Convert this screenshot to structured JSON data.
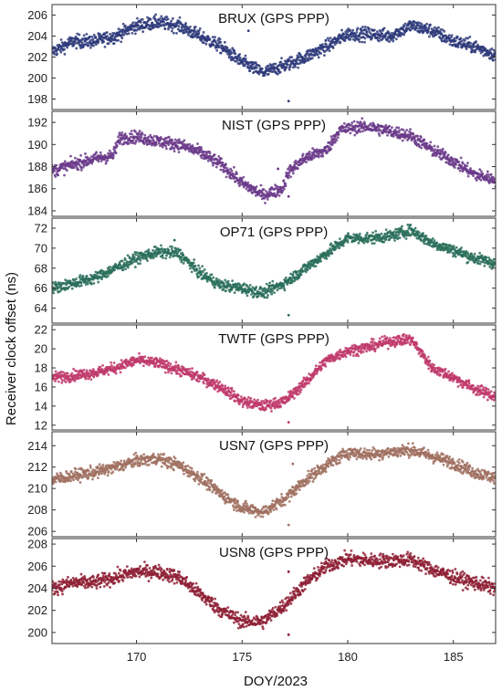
{
  "chart_data": {
    "type": "scatter",
    "xlabel": "DOY/2023",
    "ylabel": "Receiver clock offset (ns)",
    "xlim": [
      166,
      187
    ],
    "xticks": [
      170,
      175,
      180,
      185
    ],
    "legend": "none",
    "grid": false,
    "panels": [
      {
        "title": "BRUX (GPS PPP)",
        "color": "#2e3a7a",
        "ylim": [
          197,
          207
        ],
        "yticks": [
          198,
          200,
          202,
          204,
          206
        ],
        "noise": 0.9,
        "series": {
          "x": [
            166,
            167,
            168,
            169,
            170,
            171,
            172,
            173,
            174,
            175,
            176,
            177,
            178,
            179,
            180,
            181,
            182,
            183,
            184,
            185,
            186,
            187
          ],
          "y": [
            202.5,
            203.5,
            203.5,
            204.0,
            205.0,
            205.3,
            205.0,
            204.0,
            203.0,
            201.5,
            200.5,
            201.2,
            202.0,
            203.0,
            204.2,
            204.2,
            204.0,
            205.0,
            204.5,
            203.5,
            203.0,
            202.2
          ]
        },
        "outliers": [
          [
            177.2,
            197.8
          ],
          [
            175.3,
            204.5
          ]
        ]
      },
      {
        "title": "NIST (GPS PPP)",
        "color": "#6b3a8a",
        "ylim": [
          183.5,
          193
        ],
        "yticks": [
          184,
          186,
          188,
          190,
          192
        ],
        "noise": 0.8,
        "series": {
          "x": [
            166,
            167,
            168,
            168.9,
            169.2,
            170,
            171,
            172,
            173,
            174,
            175,
            176,
            176.9,
            177.2,
            178,
            179,
            179.6,
            180.5,
            181,
            182,
            183,
            184,
            185,
            186,
            187
          ],
          "y": [
            187.6,
            188.2,
            188.7,
            189.0,
            190.6,
            190.7,
            190.3,
            190.0,
            189.3,
            188.2,
            186.5,
            185.4,
            186.0,
            187.5,
            188.8,
            189.5,
            191.3,
            191.6,
            191.6,
            191.2,
            190.8,
            189.5,
            188.5,
            187.3,
            186.8
          ]
        },
        "outliers": [
          [
            177.2,
            185.3
          ],
          [
            176.7,
            187.8
          ]
        ]
      },
      {
        "title": "OP71 (GPS PPP)",
        "color": "#2a6e5a",
        "ylim": [
          62.5,
          73
        ],
        "yticks": [
          64,
          66,
          68,
          70,
          72
        ],
        "noise": 0.8,
        "series": {
          "x": [
            166,
            167,
            168,
            169,
            170,
            171,
            172,
            173,
            174,
            175,
            176,
            177,
            178,
            179,
            180,
            181,
            182,
            183,
            184,
            185,
            186,
            187
          ],
          "y": [
            66.0,
            66.5,
            67.0,
            68.0,
            69.0,
            69.6,
            69.5,
            67.5,
            66.3,
            66.0,
            65.5,
            66.5,
            68.0,
            69.5,
            71.0,
            71.0,
            71.2,
            71.8,
            70.5,
            69.8,
            69.0,
            68.5
          ]
        },
        "outliers": [
          [
            177.2,
            63.3
          ],
          [
            171.8,
            70.8
          ]
        ]
      },
      {
        "title": "TWTF (GPS PPP)",
        "color": "#c0386a",
        "ylim": [
          11.5,
          22.5
        ],
        "yticks": [
          12,
          14,
          16,
          18,
          20,
          22
        ],
        "noise": 0.8,
        "series": {
          "x": [
            166,
            167,
            168,
            169,
            170,
            171,
            172,
            173,
            174,
            175,
            176,
            177,
            178,
            179,
            180,
            181,
            182,
            183,
            184,
            185,
            186,
            187
          ],
          "y": [
            17.0,
            17.2,
            17.5,
            18.0,
            18.8,
            18.5,
            17.8,
            17.0,
            16.0,
            14.5,
            14.0,
            14.5,
            16.5,
            18.8,
            19.8,
            20.2,
            20.8,
            21.0,
            18.0,
            17.0,
            15.8,
            15.0
          ]
        },
        "outliers": [
          [
            177.2,
            12.3
          ]
        ]
      },
      {
        "title": "USN7 (GPS PPP)",
        "color": "#a07060",
        "ylim": [
          205.5,
          215.3
        ],
        "yticks": [
          206,
          208,
          210,
          212,
          214
        ],
        "noise": 0.8,
        "series": {
          "x": [
            166,
            167,
            168,
            169,
            170,
            171,
            172,
            173,
            174,
            175,
            176,
            177,
            178,
            179,
            180,
            181,
            182,
            183,
            184,
            185,
            186,
            187
          ],
          "y": [
            210.8,
            211.2,
            211.5,
            212.0,
            212.6,
            212.8,
            212.2,
            211.0,
            209.5,
            208.2,
            207.8,
            209.0,
            210.8,
            212.2,
            213.4,
            213.2,
            213.4,
            213.6,
            213.0,
            212.4,
            211.5,
            211.0
          ]
        },
        "outliers": [
          [
            177.2,
            206.6
          ],
          [
            177.4,
            212.3
          ]
        ]
      },
      {
        "title": "USN8 (GPS PPP)",
        "color": "#8e1e34",
        "ylim": [
          199,
          208.5
        ],
        "yticks": [
          200,
          202,
          204,
          206,
          208
        ],
        "noise": 0.9,
        "series": {
          "x": [
            166,
            167,
            168,
            169,
            170,
            171,
            172,
            173,
            174,
            175,
            176,
            177,
            178,
            179,
            180,
            181,
            182,
            183,
            184,
            185,
            186,
            187
          ],
          "y": [
            204.0,
            204.5,
            204.5,
            205.0,
            205.5,
            205.5,
            205.0,
            203.5,
            202.0,
            201.0,
            201.0,
            202.5,
            204.5,
            206.0,
            206.7,
            206.5,
            206.5,
            206.6,
            205.7,
            205.0,
            204.5,
            204.0
          ]
        },
        "outliers": [
          [
            177.2,
            199.8
          ],
          [
            177.2,
            205.5
          ]
        ]
      }
    ]
  }
}
